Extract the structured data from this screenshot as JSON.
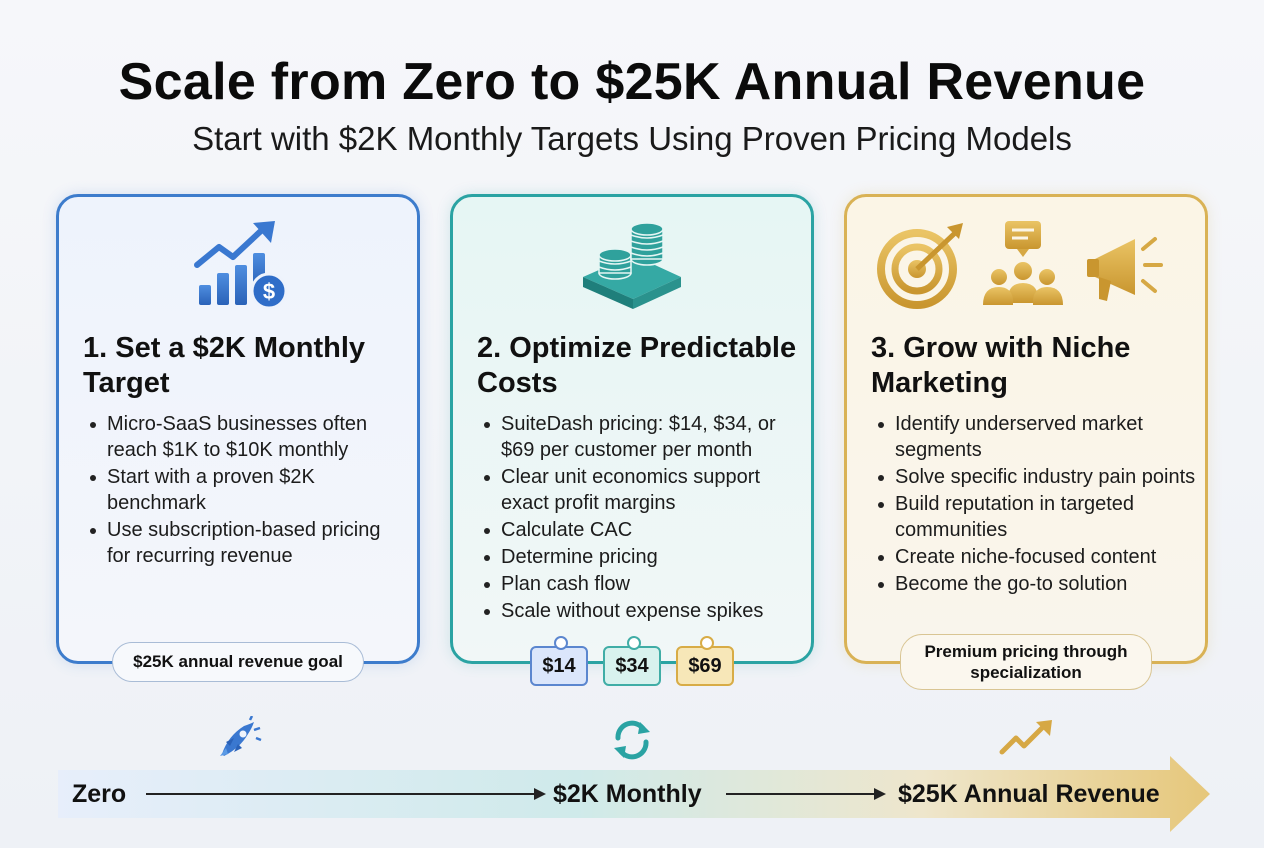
{
  "header": {
    "title": "Scale from Zero to $25K Annual Revenue",
    "subtitle": "Start with $2K Monthly Targets Using Proven Pricing Models"
  },
  "cards": [
    {
      "title": "1. Set a $2K Monthly Target",
      "icon": "growth-chart-dollar-icon",
      "accent": "#3d7ccc",
      "bullets": [
        "Micro-SaaS businesses often reach $1K to $10K monthly",
        "Start with a proven $2K benchmark",
        "Use subscription-based pricing for recurring revenue"
      ],
      "badge": "$25K annual revenue goal"
    },
    {
      "title": "2. Optimize Predictable Costs",
      "icon": "coin-stack-icon",
      "accent": "#2aa3a3",
      "bullets": [
        "SuiteDash pricing: $14, $34, or $69 per customer per month",
        "Clear unit economics support exact profit margins",
        "Calculate CAC",
        "Determine pricing",
        "Plan cash flow",
        "Scale without expense spikes"
      ],
      "price_tags": [
        "$14",
        "$34",
        "$69"
      ]
    },
    {
      "title": "3. Grow with Niche Marketing",
      "icon": "target-community-megaphone-icons",
      "accent": "#d9b255",
      "bullets": [
        "Identify underserved market segments",
        "Solve specific industry pain points",
        "Build reputation in targeted communities",
        "Create niche-focused content",
        "Become the go-to solution"
      ],
      "badge": "Premium pricing through specialization"
    }
  ],
  "timeline": {
    "stages": [
      "Zero",
      "$2K Monthly",
      "$25K Annual Revenue"
    ],
    "icons": [
      "rocket-icon",
      "refresh-cycle-icon",
      "trend-up-icon"
    ]
  }
}
